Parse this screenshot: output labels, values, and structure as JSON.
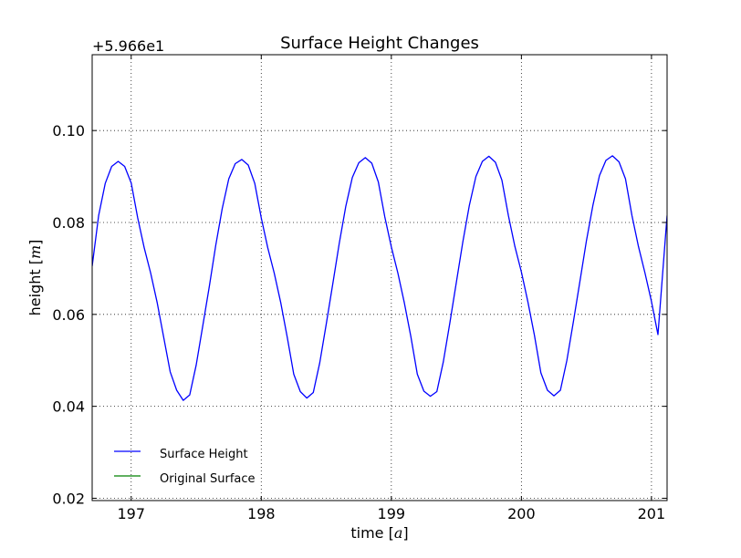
{
  "chart_data": {
    "type": "line",
    "title": "Surface Height Changes",
    "xlabel_text": "time ",
    "xlabel_unit": "a",
    "ylabel_text": "height ",
    "ylabel_unit": "m",
    "y_offset_label": "+5.966e1",
    "y_offset": 59.66,
    "xlim": [
      196.7,
      201.12
    ],
    "ylim": [
      0.0195,
      0.1165
    ],
    "xticks": [
      197,
      198,
      199,
      200,
      201
    ],
    "xtick_labels": [
      "197",
      "198",
      "199",
      "200",
      "201"
    ],
    "yticks": [
      0.02,
      0.04,
      0.06,
      0.08,
      0.1
    ],
    "ytick_labels": [
      "0.02",
      "0.04",
      "0.06",
      "0.08",
      "0.10"
    ],
    "grid": true,
    "legend_position": "lower-left",
    "series": [
      {
        "name": "Surface Height",
        "color": "#0000ff",
        "x": [
          196.7,
          196.75,
          196.8,
          196.85,
          196.9,
          196.95,
          197.0,
          197.05,
          197.1,
          197.15,
          197.2,
          197.25,
          197.3,
          197.35,
          197.4,
          197.45,
          197.5,
          197.55,
          197.6,
          197.65,
          197.7,
          197.75,
          197.8,
          197.85,
          197.9,
          197.95,
          198.0,
          198.05,
          198.1,
          198.15,
          198.2,
          198.25,
          198.3,
          198.35,
          198.4,
          198.45,
          198.5,
          198.55,
          198.6,
          198.65,
          198.7,
          198.75,
          198.8,
          198.85,
          198.9,
          198.95,
          199.0,
          199.05,
          199.1,
          199.15,
          199.2,
          199.25,
          199.3,
          199.35,
          199.4,
          199.45,
          199.5,
          199.55,
          199.6,
          199.65,
          199.7,
          199.75,
          199.8,
          199.85,
          199.9,
          199.95,
          200.0,
          200.05,
          200.1,
          200.15,
          200.2,
          200.25,
          200.3,
          200.35,
          200.4,
          200.45,
          200.5,
          200.55,
          200.6,
          200.65,
          200.7,
          200.75,
          200.8,
          200.85,
          200.9,
          200.95,
          201.0,
          201.05,
          201.12
        ],
        "y": [
          0.0705,
          0.0815,
          0.0885,
          0.0922,
          0.0933,
          0.0922,
          0.0886,
          0.081,
          0.0745,
          0.069,
          0.0625,
          0.055,
          0.0475,
          0.0435,
          0.0413,
          0.0425,
          0.049,
          0.0575,
          0.066,
          0.075,
          0.083,
          0.0895,
          0.0928,
          0.0937,
          0.0925,
          0.0885,
          0.081,
          0.0745,
          0.069,
          0.0625,
          0.055,
          0.047,
          0.0432,
          0.0418,
          0.043,
          0.0495,
          0.058,
          0.0667,
          0.0755,
          0.0835,
          0.0898,
          0.093,
          0.0941,
          0.0929,
          0.0888,
          0.0812,
          0.0747,
          0.069,
          0.0625,
          0.0552,
          0.047,
          0.0433,
          0.0422,
          0.0432,
          0.0497,
          0.0582,
          0.067,
          0.0758,
          0.0837,
          0.09,
          0.0933,
          0.0944,
          0.0931,
          0.0892,
          0.0815,
          0.0748,
          0.0692,
          0.0627,
          0.0555,
          0.0473,
          0.0435,
          0.0423,
          0.0435,
          0.05,
          0.0585,
          0.0672,
          0.076,
          0.0838,
          0.0902,
          0.0935,
          0.0945,
          0.0932,
          0.0895,
          0.0815,
          0.0748,
          0.069,
          0.0628,
          0.0556,
          0.0815
        ]
      },
      {
        "name": "Original Surface",
        "color": "#008000",
        "x": [],
        "y": []
      }
    ]
  }
}
